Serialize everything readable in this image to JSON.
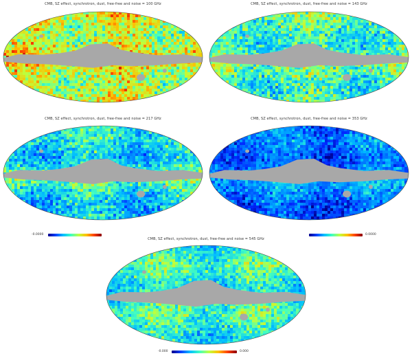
{
  "panels": [
    {
      "id": "p1",
      "title": "CMB, SZ effect, synchrotron, dust, free-free and noise = 100 GHz",
      "palette": "warm"
    },
    {
      "id": "p2",
      "title": "CMB, SZ effect, synchrotron, dust, free-free and noise = 143 GHz",
      "palette": "mid"
    },
    {
      "id": "p3",
      "title": "CMB, SZ effect, synchrotron, dust, free-free and noise = 217 GHz",
      "palette": "cool"
    },
    {
      "id": "p4",
      "title": "CMB, SZ effect, synchrotron, dust, free-free and noise = 353 GHz",
      "palette": "cold"
    },
    {
      "id": "p5",
      "title": "CMB, SZ effect, synchrotron, dust, free-free and noise = 545 GHz",
      "palette": "even"
    }
  ],
  "colorbars": {
    "left_min": "-0.0000",
    "right_max": "0.0000",
    "bottom_min": "-0.000",
    "bottom_max": "0.000"
  },
  "colors": {
    "mask": "#a8a8a8",
    "outline": "#444444"
  }
}
